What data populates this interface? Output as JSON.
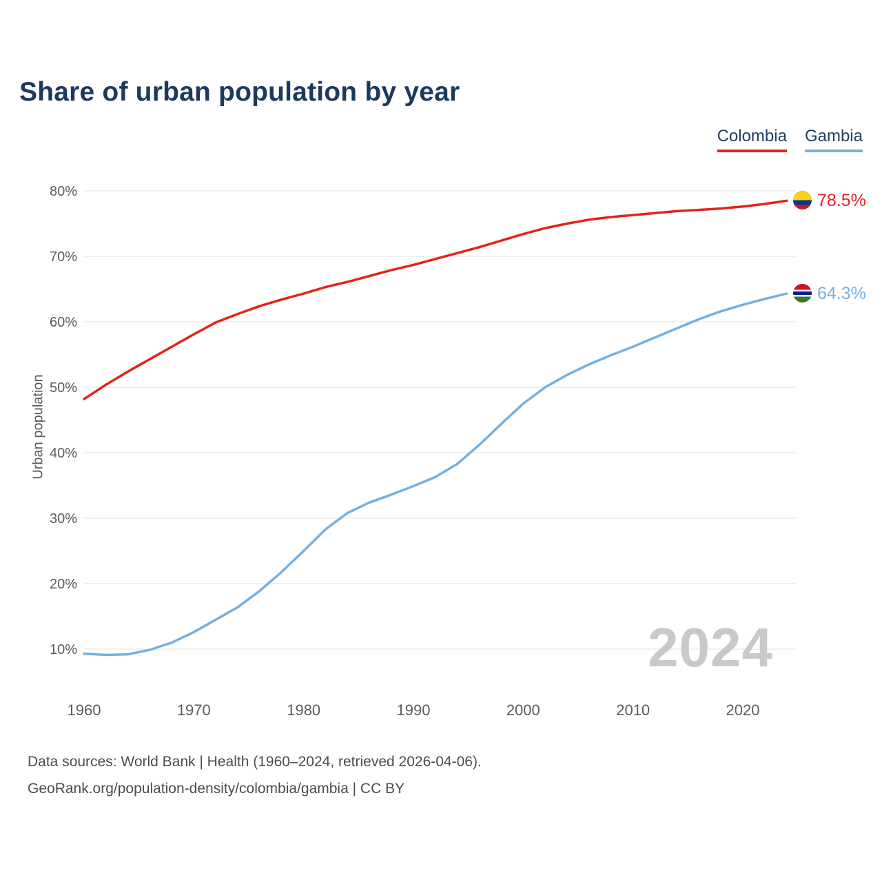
{
  "title": "Share of urban population by year",
  "watermark": "2024",
  "footer": {
    "line1": "Data sources: World Bank | Health (1960–2024, retrieved 2026-04-06).",
    "line2": "GeoRank.org/population-density/colombia/gambia | CC BY"
  },
  "chart_data": {
    "type": "line",
    "title": "Share of urban population by year",
    "xlabel": "",
    "ylabel": "Urban population",
    "xlim": [
      1960,
      2024
    ],
    "ylim": [
      5,
      83
    ],
    "x_ticks": [
      1960,
      1970,
      1980,
      1990,
      2000,
      2010,
      2020
    ],
    "y_ticks": [
      10,
      20,
      30,
      40,
      50,
      60,
      70,
      80
    ],
    "grid": "horizontal",
    "legend_position": "top-right",
    "series": [
      {
        "name": "Colombia",
        "color": "#e2231a",
        "end_label": "78.5%",
        "flag_icon": "colombia-flag",
        "x": [
          1960,
          1962,
          1964,
          1966,
          1968,
          1970,
          1972,
          1974,
          1976,
          1978,
          1980,
          1982,
          1984,
          1986,
          1988,
          1990,
          1992,
          1994,
          1996,
          1998,
          2000,
          2002,
          2004,
          2006,
          2008,
          2010,
          2012,
          2014,
          2016,
          2018,
          2020,
          2022,
          2024
        ],
        "values": [
          48.2,
          50.4,
          52.4,
          54.3,
          56.2,
          58.1,
          59.9,
          61.2,
          62.4,
          63.4,
          64.3,
          65.3,
          66.1,
          67.0,
          67.9,
          68.7,
          69.6,
          70.5,
          71.4,
          72.4,
          73.4,
          74.3,
          75.0,
          75.6,
          76.0,
          76.3,
          76.6,
          76.9,
          77.1,
          77.3,
          77.6,
          78.0,
          78.5
        ]
      },
      {
        "name": "Gambia",
        "color": "#74b0e0",
        "end_label": "64.3%",
        "flag_icon": "gambia-flag",
        "x": [
          1960,
          1962,
          1964,
          1966,
          1968,
          1970,
          1972,
          1974,
          1976,
          1978,
          1980,
          1982,
          1984,
          1986,
          1988,
          1990,
          1992,
          1994,
          1996,
          1998,
          2000,
          2002,
          2004,
          2006,
          2008,
          2010,
          2012,
          2014,
          2016,
          2018,
          2020,
          2022,
          2024
        ],
        "values": [
          9.3,
          9.1,
          9.2,
          9.9,
          11.0,
          12.6,
          14.5,
          16.4,
          18.9,
          21.8,
          25.0,
          28.3,
          30.8,
          32.4,
          33.6,
          34.9,
          36.3,
          38.3,
          41.2,
          44.4,
          47.5,
          50.0,
          51.9,
          53.5,
          54.9,
          56.2,
          57.6,
          59.0,
          60.4,
          61.6,
          62.6,
          63.5,
          64.3
        ]
      }
    ]
  }
}
